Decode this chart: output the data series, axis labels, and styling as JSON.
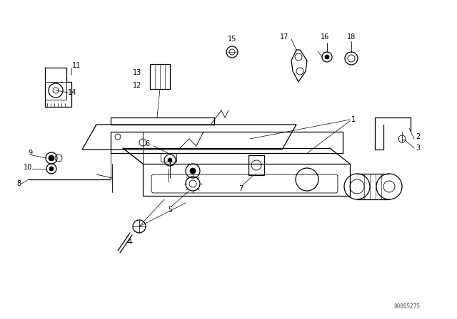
{
  "watermark": "00005275",
  "bg_color": "#ffffff",
  "fig_width": 6.4,
  "fig_height": 4.48,
  "dpi": 100
}
